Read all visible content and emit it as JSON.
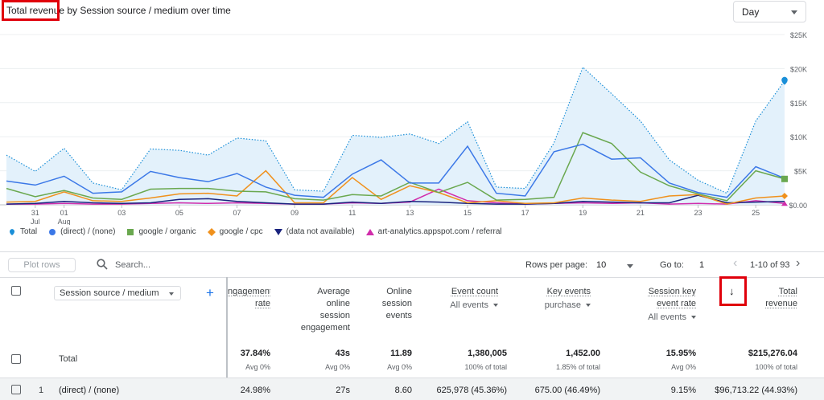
{
  "chart_title": "Total revenue by Session source / medium over time",
  "granularity": {
    "selected": "Day"
  },
  "colors": {
    "total": "#1a8fd8",
    "direct": "#3b78e7",
    "organic": "#6aa84f",
    "cpc": "#f0911c",
    "na": "#1a237e",
    "referral": "#d12dab"
  },
  "chart_data": {
    "type": "line",
    "x": [
      "30",
      "31",
      "01",
      "02",
      "03",
      "04",
      "05",
      "06",
      "07",
      "08",
      "09",
      "10",
      "11",
      "12",
      "13",
      "14",
      "15",
      "16",
      "17",
      "18",
      "19",
      "20",
      "21",
      "22",
      "23",
      "24",
      "25",
      "26"
    ],
    "x_tick_labels": [
      [
        "31",
        "Jul"
      ],
      [
        "01",
        "Aug"
      ],
      [
        "03"
      ],
      [
        "05"
      ],
      [
        "07"
      ],
      [
        "09"
      ],
      [
        "11"
      ],
      [
        "13"
      ],
      [
        "15"
      ],
      [
        "17"
      ],
      [
        "19"
      ],
      [
        "21"
      ],
      [
        "23"
      ],
      [
        "25"
      ]
    ],
    "y_ticks": [
      "$25K",
      "$20K",
      "$15K",
      "$10K",
      "$5K",
      "$0.00"
    ],
    "ylim": [
      0,
      25000
    ],
    "series": [
      {
        "name": "Total",
        "style": "dotted-area",
        "values": [
          7300,
          4900,
          8300,
          3200,
          2200,
          8200,
          8000,
          7300,
          9800,
          9400,
          2200,
          2000,
          10200,
          9900,
          10400,
          9000,
          12200,
          2600,
          2400,
          9100,
          20200,
          16300,
          12300,
          6600,
          3600,
          1700,
          12300,
          18200
        ]
      },
      {
        "name": "(direct) / (none)",
        "values": [
          3500,
          2900,
          4200,
          1700,
          1900,
          4900,
          4000,
          3400,
          4600,
          2600,
          1400,
          1100,
          4500,
          6600,
          3200,
          3200,
          8600,
          1700,
          1300,
          7800,
          8900,
          6700,
          6900,
          3200,
          1800,
          1100,
          5600,
          3900
        ]
      },
      {
        "name": "google / organic",
        "values": [
          2400,
          1200,
          2100,
          1000,
          800,
          2300,
          2400,
          2400,
          2000,
          1900,
          900,
          700,
          1500,
          1300,
          3300,
          1800,
          3300,
          700,
          800,
          1100,
          10600,
          9000,
          4800,
          2800,
          1600,
          600,
          5000,
          3800
        ]
      },
      {
        "name": "google / cpc",
        "values": [
          400,
          500,
          1900,
          600,
          500,
          1000,
          1600,
          1700,
          1300,
          5000,
          300,
          300,
          4000,
          800,
          2800,
          1800,
          300,
          600,
          200,
          300,
          1000,
          700,
          500,
          1300,
          1500,
          100,
          1000,
          1300
        ]
      },
      {
        "name": "(data not available)",
        "values": [
          100,
          200,
          500,
          300,
          200,
          300,
          800,
          900,
          500,
          300,
          100,
          100,
          400,
          200,
          500,
          400,
          200,
          100,
          100,
          200,
          500,
          400,
          300,
          300,
          1400,
          300,
          400,
          500
        ]
      },
      {
        "name": "art-analytics.appspot.com / referral",
        "values": [
          100,
          100,
          200,
          100,
          100,
          200,
          300,
          200,
          300,
          200,
          100,
          100,
          300,
          200,
          400,
          2300,
          600,
          300,
          100,
          200,
          300,
          200,
          300,
          100,
          200,
          100,
          600,
          200
        ]
      }
    ]
  },
  "legend": [
    {
      "label": "Total",
      "icon": "drop-icon"
    },
    {
      "label": "(direct) / (none)",
      "icon": "circle-icon"
    },
    {
      "label": "google / organic",
      "icon": "square-icon"
    },
    {
      "label": "google / cpc",
      "icon": "diamond-icon"
    },
    {
      "label": "(data not available)",
      "icon": "triangle-down-icon"
    },
    {
      "label": "art-analytics.appspot.com / referral",
      "icon": "triangle-up-icon"
    }
  ],
  "toolbar": {
    "plot_rows": "Plot rows",
    "search_placeholder": "Search...",
    "rows_per_page_label": "Rows per page:",
    "rows_per_page_value": "10",
    "goto_label": "Go to:",
    "goto_value": "1",
    "range": "1-10 of 93"
  },
  "table": {
    "dimension": "Session source / medium",
    "headers": {
      "engagement_rate": [
        "ngagement",
        "rate"
      ],
      "avg_engagement": [
        "Average",
        "online",
        "session",
        "engagement"
      ],
      "online_events": [
        "Online",
        "session",
        "events"
      ],
      "event_count": "Event count",
      "event_count_sub": "All events",
      "key_events": "Key events",
      "key_events_sub": "purchase",
      "session_key_rate": [
        "Session key",
        "event rate"
      ],
      "session_key_rate_sub": "All events",
      "total_revenue": "Total revenue"
    },
    "total_row": {
      "label": "Total",
      "engagement_rate": "37.84%",
      "engagement_rate_sub": "Avg 0%",
      "avg_engagement": "43s",
      "avg_engagement_sub": "Avg 0%",
      "online_events": "11.89",
      "online_events_sub": "Avg 0%",
      "event_count": "1,380,005",
      "event_count_sub": "100% of total",
      "key_events": "1,452.00",
      "key_events_sub": "1.85% of total",
      "session_key_rate": "15.95%",
      "session_key_rate_sub": "Avg 0%",
      "total_revenue": "$215,276.04",
      "total_revenue_sub": "100% of total"
    },
    "rows": [
      {
        "index": "1",
        "label": "(direct) / (none)",
        "engagement_rate": "24.98%",
        "avg_engagement": "27s",
        "online_events": "8.60",
        "event_count": "625,978 (45.36%)",
        "key_events": "675.00 (46.49%)",
        "session_key_rate": "9.15%",
        "total_revenue": "$96,713.22 (44.93%)"
      }
    ]
  }
}
